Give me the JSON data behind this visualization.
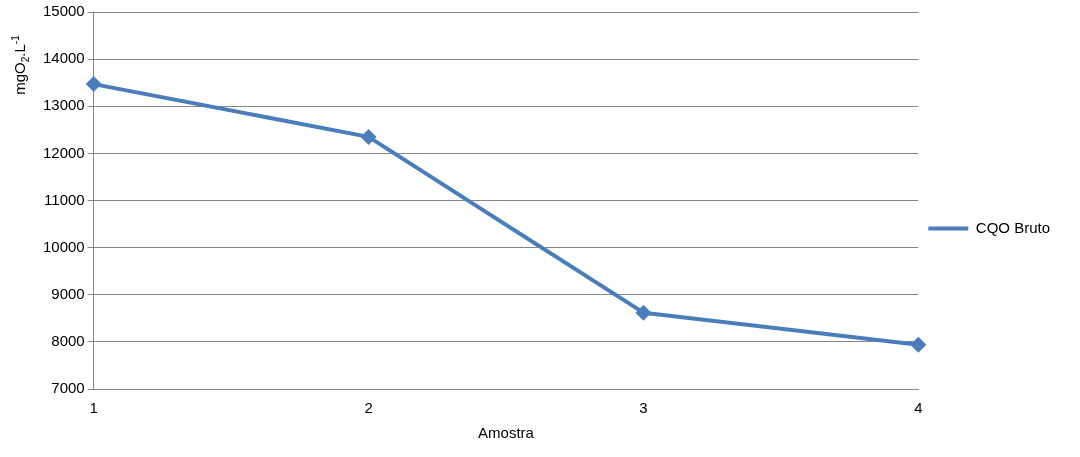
{
  "chart_data": {
    "type": "line",
    "xlabel": "Amostra",
    "ylabel": "mgO$_{2}$.L$^{-1}$",
    "categories": [
      "1",
      "2",
      "3",
      "4"
    ],
    "series": [
      {
        "name": "CQO Bruto",
        "color": "#4a7ebb",
        "values": [
          13470,
          12350,
          8620,
          7940
        ]
      }
    ],
    "ylim": [
      7000,
      15000
    ],
    "yticks": [
      7000,
      8000,
      9000,
      10000,
      11000,
      12000,
      13000,
      14000,
      15000
    ],
    "grid": "y",
    "legend": "right",
    "marker": "diamond",
    "line_style": "solid"
  }
}
